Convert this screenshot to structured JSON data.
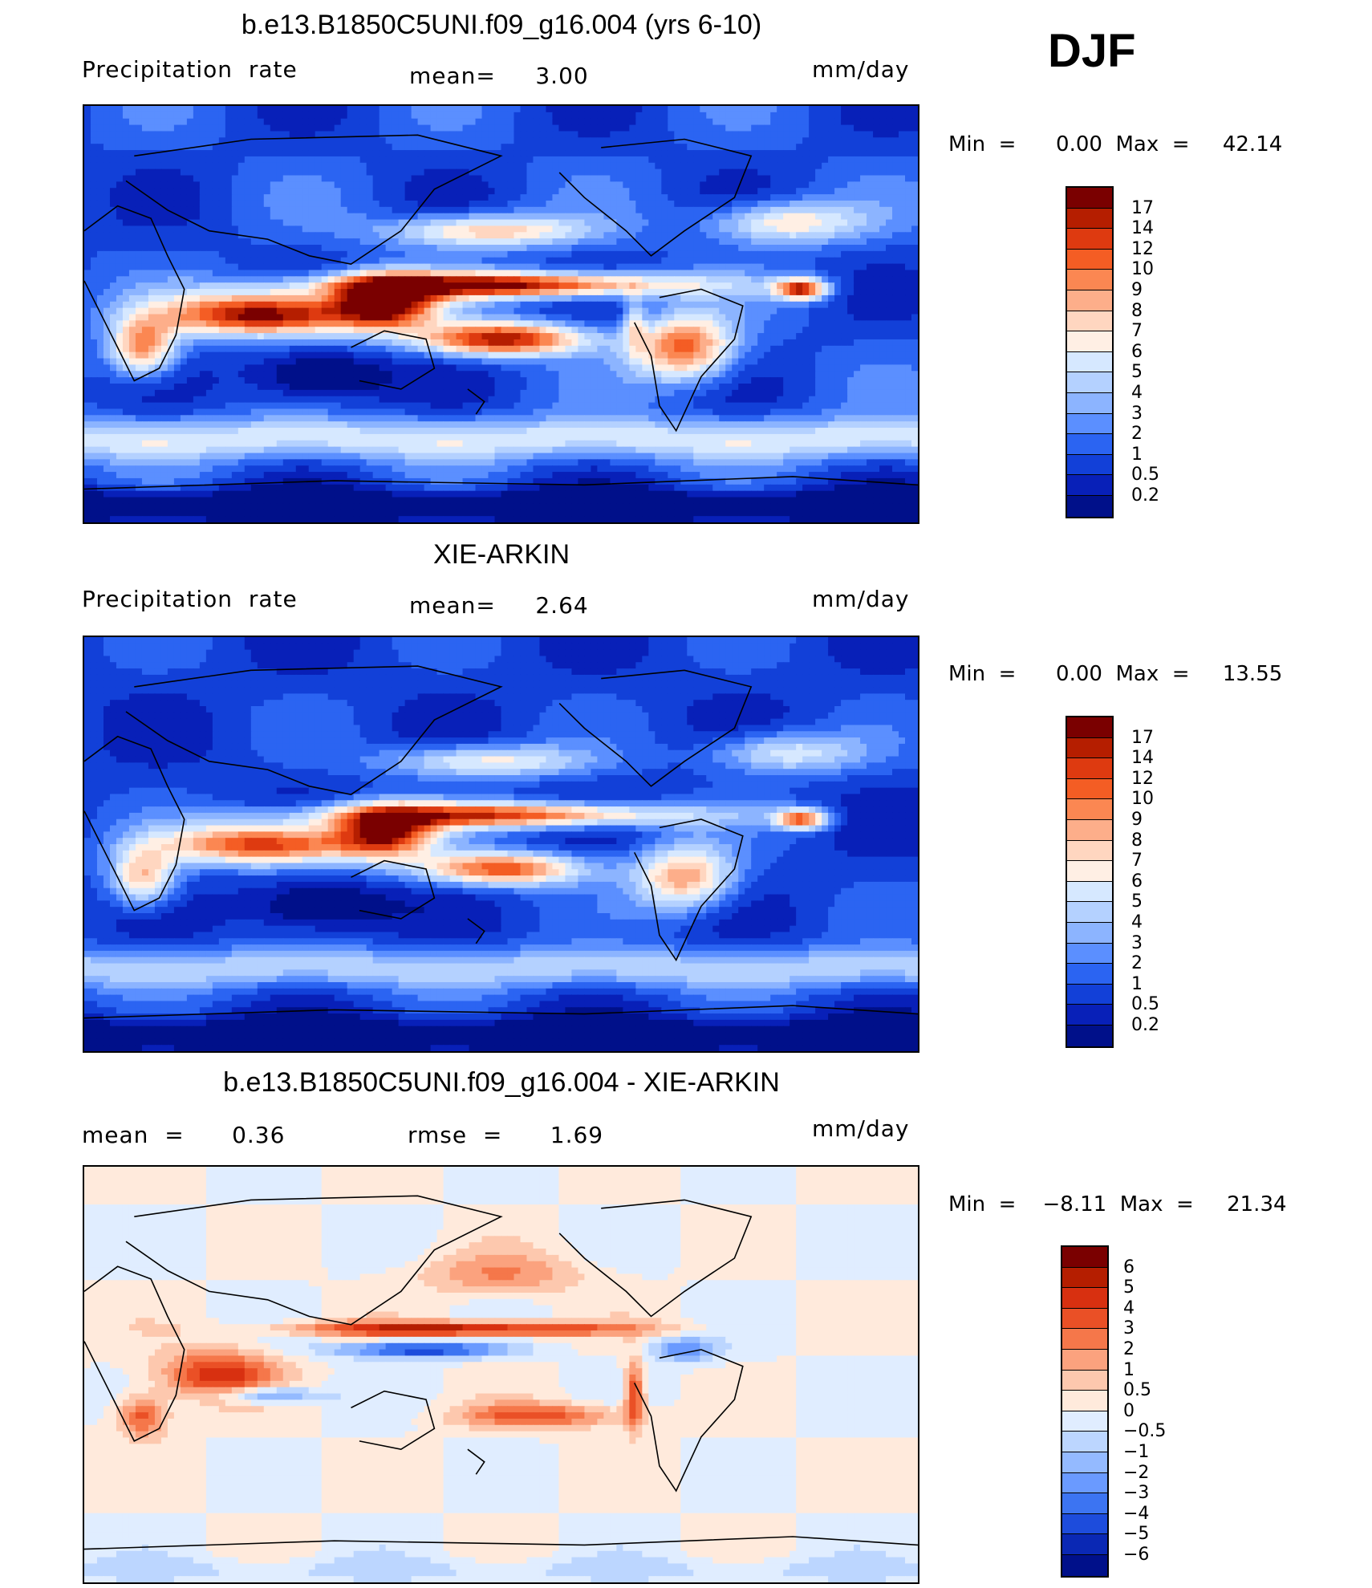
{
  "season": "DJF",
  "panels": [
    {
      "title": "b.e13.B1850C5UNI.f09_g16.004 (yrs 6-10)",
      "left_text": "Precipitation  rate",
      "middle_text": "mean=     3.00",
      "units": "mm/day",
      "minmax": "Min  =      0.00  Max  =     42.14",
      "colorbar_labels": [
        "17",
        "14",
        "12",
        "10",
        "9",
        "8",
        "7",
        "6",
        "5",
        "4",
        "3",
        "2",
        "1",
        "0.5",
        "0.2"
      ],
      "colors": [
        "#7a0000",
        "#b51e00",
        "#de3a10",
        "#f45d24",
        "#fb8752",
        "#fdae8a",
        "#ffd6c0",
        "#ffefe4",
        "#d6e8ff",
        "#b4d1ff",
        "#8cb4ff",
        "#5b8fff",
        "#2b64f2",
        "#1240d8",
        "#0820b8",
        "#00108a"
      ],
      "map_type": "model"
    },
    {
      "title": "XIE-ARKIN",
      "left_text": "Precipitation  rate",
      "middle_text": "mean=     2.64",
      "units": "mm/day",
      "minmax": "Min  =      0.00  Max  =     13.55",
      "colorbar_labels": [
        "17",
        "14",
        "12",
        "10",
        "9",
        "8",
        "7",
        "6",
        "5",
        "4",
        "3",
        "2",
        "1",
        "0.5",
        "0.2"
      ],
      "colors": [
        "#7a0000",
        "#b51e00",
        "#de3a10",
        "#f45d24",
        "#fb8752",
        "#fdae8a",
        "#ffd6c0",
        "#ffefe4",
        "#d6e8ff",
        "#b4d1ff",
        "#8cb4ff",
        "#5b8fff",
        "#2b64f2",
        "#1240d8",
        "#0820b8",
        "#00108a"
      ],
      "map_type": "obs"
    },
    {
      "title": "b.e13.B1850C5UNI.f09_g16.004 - XIE-ARKIN",
      "left_text": "mean  =      0.36",
      "middle_text": "rmse  =      1.69",
      "units": "mm/day",
      "minmax": "Min  =    −8.11  Max  =     21.34",
      "colorbar_labels": [
        "6",
        "5",
        "4",
        "3",
        "2",
        "1",
        "0.5",
        "0",
        "−0.5",
        "−1",
        "−2",
        "−3",
        "−4",
        "−5",
        "−6"
      ],
      "colors": [
        "#7a0000",
        "#b51e00",
        "#d83010",
        "#ea5026",
        "#f5774a",
        "#fba27e",
        "#fdc8ae",
        "#ffeadc",
        "#e0edff",
        "#bcd6ff",
        "#94baff",
        "#6a9aff",
        "#3c74f2",
        "#1d4cdc",
        "#0a28b4",
        "#00108a"
      ],
      "map_type": "diff"
    }
  ]
}
